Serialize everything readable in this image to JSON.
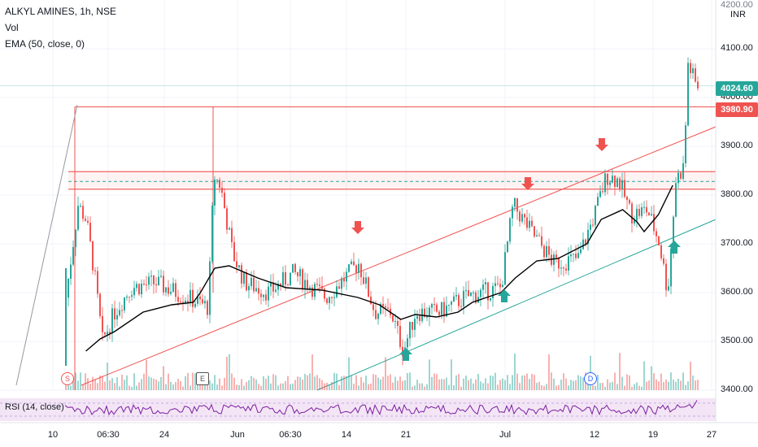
{
  "header": {
    "symbol_line": "ALKYL AMINES, 1h, NSE",
    "vol_label": "Vol",
    "ema_label": "EMA (50, close, 0)",
    "rsi_label": "RSI (14, close)",
    "currency": "INR",
    "top_cut_label": "4200.00"
  },
  "price_tags": {
    "last": "4024.60",
    "level": "3980.90",
    "last_color": "#26a69a",
    "level_color": "#ef5350"
  },
  "markers": {
    "split": "S",
    "earnings": "E",
    "dividend": "D"
  },
  "colors": {
    "up": "#26a69a",
    "down": "#ef5350",
    "ema": "#000000",
    "rsi": "#7b1fa2",
    "channel_upper": "#ef5350",
    "channel_lower": "#26a69a"
  },
  "chart_data": {
    "type": "candlestick",
    "ylim": [
      3400,
      4200
    ],
    "yticks": [
      "4100.00",
      "4000.00",
      "3900.00",
      "3800.00",
      "3700.00",
      "3600.00",
      "3500.00",
      "3400.00"
    ],
    "xticks": [
      "10",
      "06:30",
      "24",
      "Jun",
      "06:30",
      "14",
      "21",
      "Jul",
      "12",
      "19",
      "27"
    ],
    "horizontal_levels": [
      3980.9,
      3848,
      3828,
      3812
    ],
    "ema_path": [
      [
        0.12,
        3480
      ],
      [
        0.14,
        3505
      ],
      [
        0.16,
        3520
      ],
      [
        0.2,
        3560
      ],
      [
        0.24,
        3575
      ],
      [
        0.27,
        3580
      ],
      [
        0.28,
        3600
      ],
      [
        0.3,
        3650
      ],
      [
        0.32,
        3655
      ],
      [
        0.36,
        3630
      ],
      [
        0.4,
        3610
      ],
      [
        0.45,
        3605
      ],
      [
        0.5,
        3590
      ],
      [
        0.53,
        3575
      ],
      [
        0.56,
        3545
      ],
      [
        0.58,
        3555
      ],
      [
        0.61,
        3550
      ],
      [
        0.64,
        3560
      ],
      [
        0.66,
        3580
      ],
      [
        0.7,
        3600
      ],
      [
        0.72,
        3630
      ],
      [
        0.75,
        3665
      ],
      [
        0.78,
        3670
      ],
      [
        0.82,
        3700
      ],
      [
        0.84,
        3750
      ],
      [
        0.87,
        3770
      ],
      [
        0.89,
        3745
      ],
      [
        0.9,
        3725
      ],
      [
        0.92,
        3760
      ],
      [
        0.94,
        3820
      ]
    ],
    "annotations": {
      "down_arrows": [
        0.5,
        0.74,
        0.84
      ],
      "up_arrows": [
        0.57,
        0.7,
        0.94
      ]
    }
  }
}
